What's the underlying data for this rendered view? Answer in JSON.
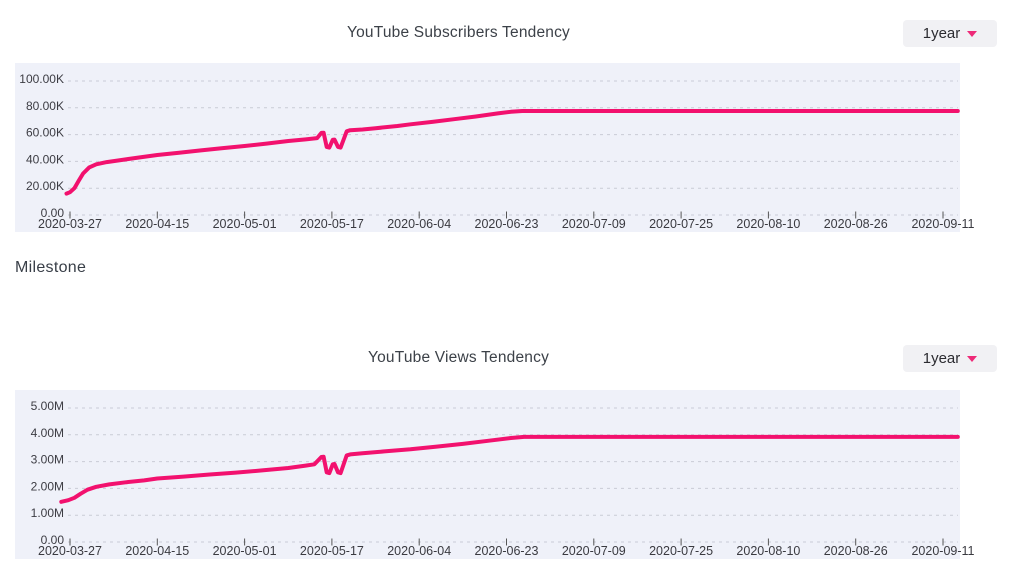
{
  "theme": {
    "accent": "#f2116e",
    "plot_bg": "#eff1f9",
    "grid": "#c9ccd6",
    "tick": "#555555",
    "axis_text": "#3c3c43",
    "date_text": "#3a3a40"
  },
  "milestone_label": "Milestone",
  "chart_data": [
    {
      "type": "line",
      "title": "YouTube Subscribers Tendency",
      "range_selector": "1year",
      "x_ticks": [
        "2020-03-27",
        "2020-04-15",
        "2020-05-01",
        "2020-05-17",
        "2020-06-04",
        "2020-06-23",
        "2020-07-09",
        "2020-07-25",
        "2020-08-10",
        "2020-08-26",
        "2020-09-11"
      ],
      "y_ticks": [
        "0.00",
        "20.00K",
        "40.00K",
        "60.00K",
        "80.00K",
        "100.00K"
      ],
      "ylim": [
        0,
        100000
      ],
      "series": [
        {
          "name": "subscribers",
          "color": "#f2116e",
          "points": [
            [
              -0.04,
              16000
            ],
            [
              0,
              17000
            ],
            [
              0.05,
              20000
            ],
            [
              0.1,
              25500
            ],
            [
              0.15,
              31000
            ],
            [
              0.22,
              35500
            ],
            [
              0.3,
              37800
            ],
            [
              0.42,
              39500
            ],
            [
              0.58,
              41000
            ],
            [
              0.78,
              42800
            ],
            [
              1,
              44800
            ],
            [
              1.25,
              46500
            ],
            [
              1.5,
              48200
            ],
            [
              1.75,
              49900
            ],
            [
              2,
              51500
            ],
            [
              2.25,
              53300
            ],
            [
              2.5,
              55200
            ],
            [
              2.7,
              56400
            ],
            [
              2.83,
              57400
            ],
            [
              2.88,
              61300
            ],
            [
              2.905,
              61400
            ],
            [
              2.94,
              50800
            ],
            [
              2.97,
              50300
            ],
            [
              3.01,
              56200
            ],
            [
              3.03,
              56300
            ],
            [
              3.07,
              50800
            ],
            [
              3.1,
              50300
            ],
            [
              3.17,
              62500
            ],
            [
              3.21,
              63300
            ],
            [
              3.35,
              63800
            ],
            [
              3.5,
              64800
            ],
            [
              3.75,
              66400
            ],
            [
              3.9,
              67700
            ],
            [
              4.15,
              69500
            ],
            [
              4.4,
              71500
            ],
            [
              4.65,
              73500
            ],
            [
              4.9,
              75800
            ],
            [
              5.05,
              77000
            ],
            [
              5.18,
              77600
            ],
            [
              10.17,
              77600
            ]
          ]
        }
      ]
    },
    {
      "type": "line",
      "title": "YouTube Views Tendency",
      "range_selector": "1year",
      "x_ticks": [
        "2020-03-27",
        "2020-04-15",
        "2020-05-01",
        "2020-05-17",
        "2020-06-04",
        "2020-06-23",
        "2020-07-09",
        "2020-07-25",
        "2020-08-10",
        "2020-08-26",
        "2020-09-11"
      ],
      "y_ticks": [
        "0.00",
        "1.00M",
        "2.00M",
        "3.00M",
        "4.00M",
        "5.00M"
      ],
      "ylim": [
        0,
        5000000
      ],
      "series": [
        {
          "name": "views",
          "color": "#f2116e",
          "points": [
            [
              -0.1,
              1500000
            ],
            [
              -0.02,
              1560000
            ],
            [
              0.05,
              1650000
            ],
            [
              0.12,
              1800000
            ],
            [
              0.2,
              1950000
            ],
            [
              0.3,
              2060000
            ],
            [
              0.45,
              2150000
            ],
            [
              0.65,
              2230000
            ],
            [
              0.85,
              2300000
            ],
            [
              1,
              2370000
            ],
            [
              1.3,
              2440000
            ],
            [
              1.6,
              2520000
            ],
            [
              1.9,
              2590000
            ],
            [
              2.2,
              2670000
            ],
            [
              2.5,
              2760000
            ],
            [
              2.7,
              2850000
            ],
            [
              2.8,
              2900000
            ],
            [
              2.88,
              3170000
            ],
            [
              2.905,
              3180000
            ],
            [
              2.94,
              2600000
            ],
            [
              2.97,
              2570000
            ],
            [
              3.01,
              2900000
            ],
            [
              3.03,
              2910000
            ],
            [
              3.07,
              2600000
            ],
            [
              3.1,
              2570000
            ],
            [
              3.17,
              3230000
            ],
            [
              3.21,
              3270000
            ],
            [
              3.35,
              3310000
            ],
            [
              3.6,
              3380000
            ],
            [
              3.9,
              3460000
            ],
            [
              4.2,
              3560000
            ],
            [
              4.5,
              3660000
            ],
            [
              4.8,
              3780000
            ],
            [
              5.05,
              3880000
            ],
            [
              5.2,
              3920000
            ],
            [
              10.17,
              3920000
            ]
          ]
        }
      ]
    }
  ]
}
